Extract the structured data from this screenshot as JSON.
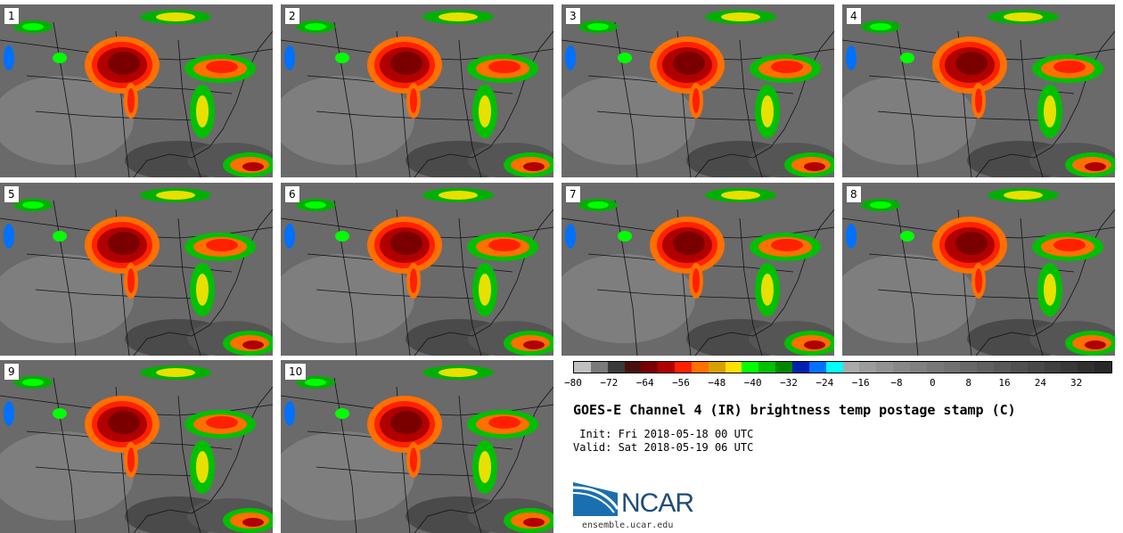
{
  "panels": [
    "1",
    "2",
    "3",
    "4",
    "5",
    "6",
    "7",
    "8",
    "9",
    "10"
  ],
  "colorbar": {
    "colors": [
      "#c0c0c0",
      "#7a7a7a",
      "#3a3a3a",
      "#4a1010",
      "#7a0000",
      "#b00000",
      "#ff2000",
      "#ff7000",
      "#d8a000",
      "#ffe000",
      "#00ff00",
      "#00c000",
      "#008800",
      "#0020b0",
      "#0070ff",
      "#00ffff",
      "#aaaaaa",
      "#9c9c9c",
      "#929292",
      "#888888",
      "#808080",
      "#787878",
      "#707070",
      "#686868",
      "#606060",
      "#585858",
      "#505050",
      "#484848",
      "#404040",
      "#383838",
      "#303030",
      "#282828"
    ],
    "tick_labels": [
      "−80",
      "−72",
      "−64",
      "−56",
      "−48",
      "−40",
      "−32",
      "−24",
      "−16",
      "−8",
      "0",
      "8",
      "16",
      "24",
      "32"
    ],
    "tick_values": [
      -80,
      -72,
      -64,
      -56,
      -48,
      -40,
      -32,
      -24,
      -16,
      -8,
      0,
      8,
      16,
      24,
      32
    ],
    "range": [
      -80,
      40
    ]
  },
  "title": "GOES-E Channel 4 (IR) brightness temp postage stamp (C)",
  "init": " Init: Fri 2018-05-18 00 UTC",
  "valid": "Valid: Sat 2018-05-19 06 UTC",
  "logo": "NCAR",
  "website": "ensemble.ucar.edu"
}
